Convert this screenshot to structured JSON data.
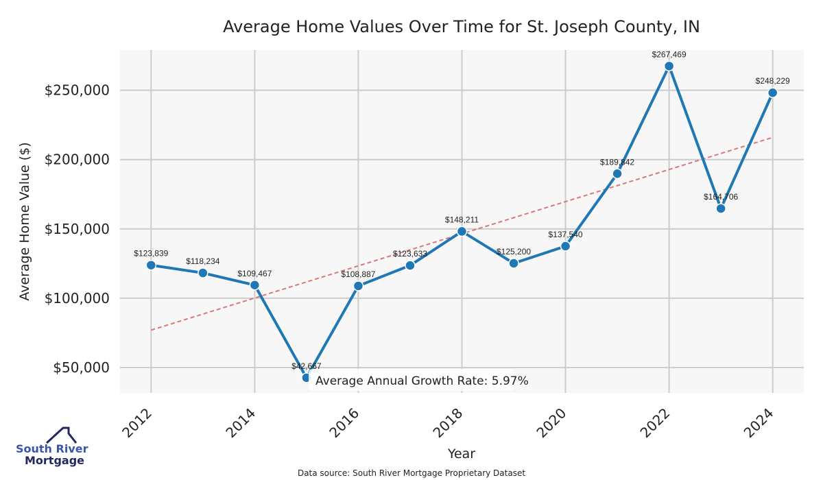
{
  "chart_data": {
    "type": "line",
    "title": "Average Home Values Over Time for St. Joseph County, IN",
    "xlabel": "Year",
    "ylabel": "Average Home Value ($)",
    "x": [
      2012,
      2013,
      2014,
      2015,
      2016,
      2017,
      2018,
      2019,
      2020,
      2021,
      2022,
      2023,
      2024
    ],
    "values": [
      123839,
      118234,
      109467,
      42667,
      108887,
      123633,
      148211,
      125200,
      137540,
      189842,
      267469,
      164706,
      248229
    ],
    "data_labels": [
      "$123,839",
      "$118,234",
      "$109,467",
      "$42,667",
      "$108,887",
      "$123,633",
      "$148,211",
      "$125,200",
      "$137,540",
      "$189,842",
      "$267,469",
      "$164,706",
      "$248,229"
    ],
    "x_ticks": [
      "2012",
      "2014",
      "2016",
      "2018",
      "2020",
      "2022",
      "2024"
    ],
    "y_ticks": [
      {
        "v": 50000,
        "label": "$50,000"
      },
      {
        "v": 100000,
        "label": "$100,000"
      },
      {
        "v": 150000,
        "label": "$150,000"
      },
      {
        "v": 200000,
        "label": "$200,000"
      },
      {
        "v": 250000,
        "label": "$250,000"
      }
    ],
    "ylim": [
      31700,
      279000
    ],
    "xlim": [
      2011.4,
      2024.6
    ],
    "trend": {
      "start": [
        2012,
        77000
      ],
      "end": [
        2024,
        216000
      ]
    },
    "annotation": "Average Annual Growth Rate: 5.97%",
    "grid": true,
    "colors": {
      "line": "#1f77b4",
      "trend": "#d9777a",
      "bg": "#f7f7f7",
      "grid": "#cccccc"
    }
  },
  "logo": {
    "line1": "South River",
    "line2": "Mortgage"
  },
  "source": "Data source: South River Mortgage Proprietary Dataset"
}
